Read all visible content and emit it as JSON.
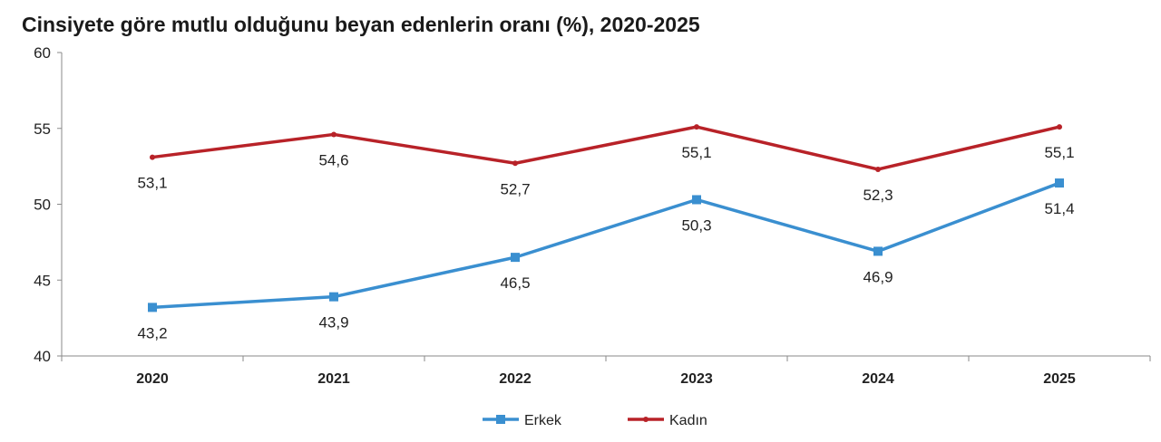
{
  "chart_data": {
    "type": "line",
    "title": "Cinsiyete göre mutlu olduğunu beyan edenlerin oranı (%), 2020-2025",
    "categories": [
      "2020",
      "2021",
      "2022",
      "2023",
      "2024",
      "2025"
    ],
    "ylim": [
      40,
      60
    ],
    "yticks": [
      40,
      45,
      50,
      55,
      60
    ],
    "grid": false,
    "legend_position": "bottom-center",
    "series": [
      {
        "name": "Erkek",
        "color": "#3a8fd0",
        "marker": "square",
        "values": [
          43.2,
          43.9,
          46.5,
          50.3,
          46.9,
          51.4
        ],
        "labels": [
          "43,2",
          "43,9",
          "46,5",
          "50,3",
          "46,9",
          "51,4"
        ]
      },
      {
        "name": "Kadın",
        "color": "#b82228",
        "marker": "cross",
        "values": [
          53.1,
          54.6,
          52.7,
          55.1,
          52.3,
          55.1
        ],
        "labels": [
          "53,1",
          "54,6",
          "52,7",
          "55,1",
          "52,3",
          "55,1"
        ]
      }
    ]
  }
}
